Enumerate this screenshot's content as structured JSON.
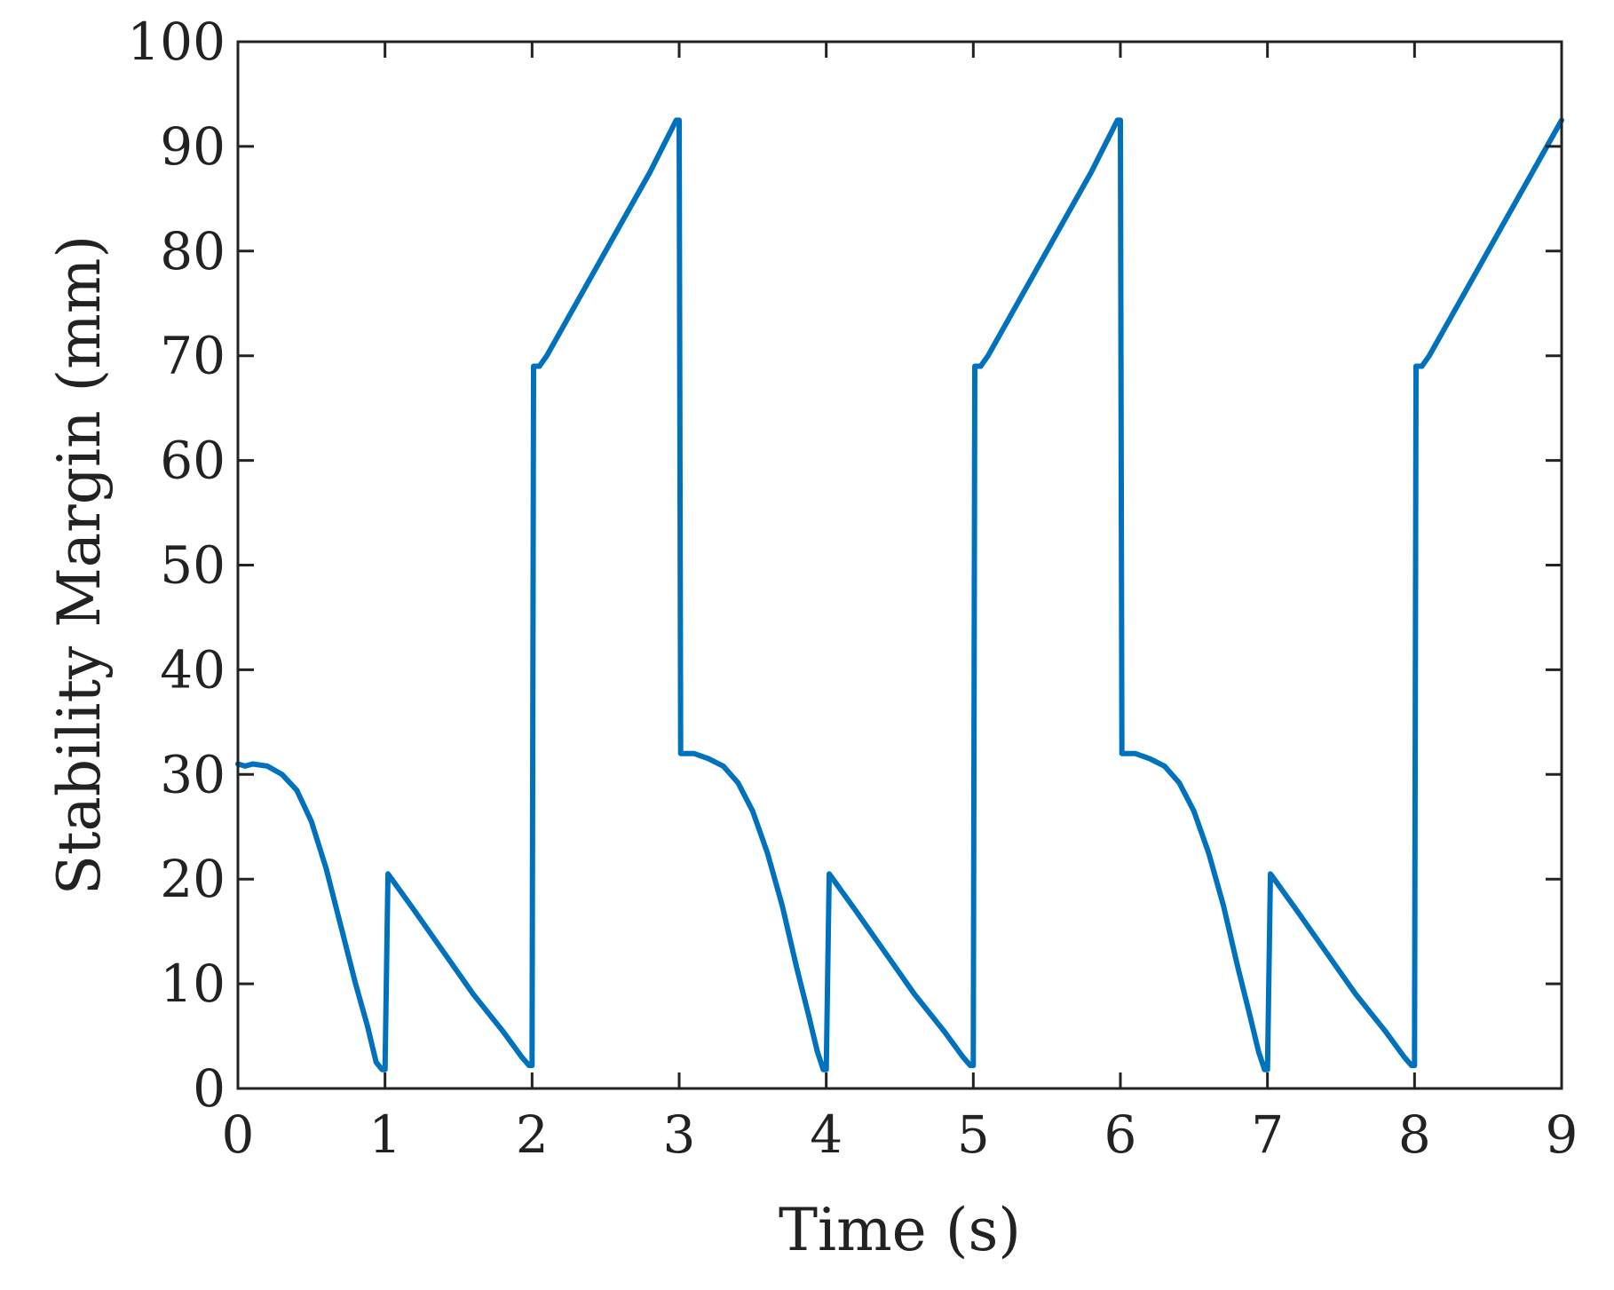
{
  "chart_data": {
    "type": "line",
    "title": "",
    "xlabel": "Time (s)",
    "ylabel": "Stability Margin (mm)",
    "xlim": [
      0,
      9
    ],
    "ylim": [
      0,
      100
    ],
    "x_ticks": [
      "0",
      "1",
      "2",
      "3",
      "4",
      "5",
      "6",
      "7",
      "8",
      "9"
    ],
    "y_ticks": [
      "0",
      "10",
      "20",
      "30",
      "40",
      "50",
      "60",
      "70",
      "80",
      "90",
      "100"
    ],
    "grid": false,
    "legend": "none",
    "series": [
      {
        "color": "#0072BD",
        "points": [
          [
            0.0,
            31.0
          ],
          [
            0.05,
            30.8
          ],
          [
            0.1,
            31.0
          ],
          [
            0.2,
            30.8
          ],
          [
            0.3,
            30.0
          ],
          [
            0.4,
            28.5
          ],
          [
            0.5,
            25.5
          ],
          [
            0.6,
            21.0
          ],
          [
            0.7,
            15.5
          ],
          [
            0.8,
            10.0
          ],
          [
            0.88,
            6.0
          ],
          [
            0.94,
            2.5
          ],
          [
            0.98,
            1.8
          ],
          [
            1.0,
            1.8
          ],
          [
            1.02,
            20.5
          ],
          [
            1.2,
            17.0
          ],
          [
            1.4,
            13.0
          ],
          [
            1.6,
            9.0
          ],
          [
            1.8,
            5.5
          ],
          [
            1.93,
            3.0
          ],
          [
            1.98,
            2.2
          ],
          [
            2.0,
            2.2
          ],
          [
            2.01,
            69.0
          ],
          [
            2.05,
            69.0
          ],
          [
            2.1,
            70.0
          ],
          [
            2.2,
            72.5
          ],
          [
            2.4,
            77.5
          ],
          [
            2.6,
            82.5
          ],
          [
            2.8,
            87.5
          ],
          [
            2.98,
            92.5
          ],
          [
            3.0,
            92.5
          ],
          [
            3.01,
            32.0
          ],
          [
            3.1,
            32.0
          ],
          [
            3.2,
            31.5
          ],
          [
            3.3,
            30.8
          ],
          [
            3.4,
            29.2
          ],
          [
            3.5,
            26.5
          ],
          [
            3.6,
            22.5
          ],
          [
            3.7,
            17.5
          ],
          [
            3.8,
            11.5
          ],
          [
            3.88,
            7.0
          ],
          [
            3.94,
            3.5
          ],
          [
            3.98,
            1.8
          ],
          [
            4.0,
            1.8
          ],
          [
            4.02,
            20.5
          ],
          [
            4.2,
            17.0
          ],
          [
            4.4,
            13.0
          ],
          [
            4.6,
            9.0
          ],
          [
            4.8,
            5.5
          ],
          [
            4.93,
            3.0
          ],
          [
            4.98,
            2.2
          ],
          [
            5.0,
            2.2
          ],
          [
            5.01,
            69.0
          ],
          [
            5.05,
            69.0
          ],
          [
            5.1,
            70.0
          ],
          [
            5.2,
            72.5
          ],
          [
            5.4,
            77.5
          ],
          [
            5.6,
            82.5
          ],
          [
            5.8,
            87.5
          ],
          [
            5.98,
            92.5
          ],
          [
            6.0,
            92.5
          ],
          [
            6.01,
            32.0
          ],
          [
            6.1,
            32.0
          ],
          [
            6.2,
            31.5
          ],
          [
            6.3,
            30.8
          ],
          [
            6.4,
            29.2
          ],
          [
            6.5,
            26.5
          ],
          [
            6.6,
            22.5
          ],
          [
            6.7,
            17.5
          ],
          [
            6.8,
            11.5
          ],
          [
            6.88,
            7.0
          ],
          [
            6.94,
            3.5
          ],
          [
            6.98,
            1.8
          ],
          [
            7.0,
            1.8
          ],
          [
            7.02,
            20.5
          ],
          [
            7.2,
            17.0
          ],
          [
            7.4,
            13.0
          ],
          [
            7.6,
            9.0
          ],
          [
            7.8,
            5.5
          ],
          [
            7.93,
            3.0
          ],
          [
            7.98,
            2.2
          ],
          [
            8.0,
            2.2
          ],
          [
            8.01,
            69.0
          ],
          [
            8.05,
            69.0
          ],
          [
            8.1,
            70.0
          ],
          [
            8.2,
            72.5
          ],
          [
            8.4,
            77.5
          ],
          [
            8.6,
            82.5
          ],
          [
            8.8,
            87.5
          ],
          [
            9.0,
            92.5
          ]
        ]
      }
    ]
  }
}
